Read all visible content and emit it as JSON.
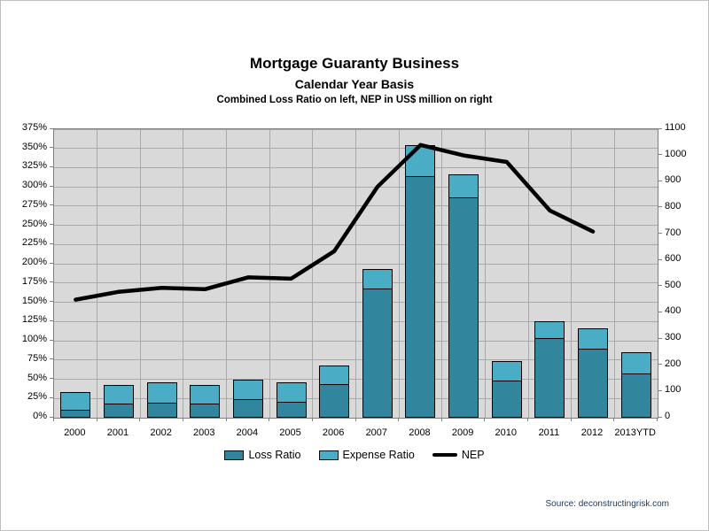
{
  "header": {
    "title": "Mortgage Guaranty Business",
    "subtitle": "Calendar Year Basis",
    "subtitle2": "Combined Loss Ratio on left, NEP in US$ million on right"
  },
  "source": {
    "text": "Source: deconstructingrisk.com"
  },
  "colors": {
    "loss_bar": "#31859C",
    "expense_bar": "#4BACC6",
    "nep_line": "#000000",
    "plot_bg": "#D9D9D9",
    "gridline": "#A9A9A9",
    "axis": "#7F7F7F",
    "source_text": "#17375E"
  },
  "chart_data": {
    "type": "bar",
    "subtype": "stacked-bars-with-line-overlay",
    "title": "Mortgage Guaranty Business",
    "subtitle": "Calendar Year Basis",
    "note": "Combined Loss Ratio on left, NEP in US$ million on right",
    "grid": true,
    "legend_position": "bottom",
    "categories": [
      "2000",
      "2001",
      "2002",
      "2003",
      "2004",
      "2005",
      "2006",
      "2007",
      "2008",
      "2009",
      "2010",
      "2011",
      "2012",
      "2013YTD"
    ],
    "series": [
      {
        "name": "Loss Ratio",
        "type": "bar",
        "stack": "combined",
        "axis": "left",
        "unit": "%",
        "values": [
          10,
          18,
          20,
          18,
          24,
          21,
          44,
          168,
          314,
          287,
          48,
          103,
          90,
          58
        ]
      },
      {
        "name": "Expense Ratio",
        "type": "bar",
        "stack": "combined",
        "axis": "left",
        "unit": "%",
        "values": [
          25,
          26,
          27,
          26,
          27,
          26,
          25,
          26,
          41,
          30,
          27,
          24,
          27,
          28
        ]
      },
      {
        "name": "NEP",
        "type": "line",
        "axis": "right",
        "unit": "US$ million",
        "values": [
          450,
          480,
          495,
          490,
          535,
          530,
          635,
          880,
          1040,
          1000,
          975,
          790,
          710,
          null
        ]
      }
    ],
    "combined_ratio_totals": [
      35,
      44,
      47,
      44,
      51,
      47,
      69,
      194,
      355,
      317,
      75,
      127,
      117,
      86
    ],
    "left_axis": {
      "min": 0,
      "max": 375,
      "step": 25,
      "format": "percent",
      "tick_labels": [
        "0%",
        "25%",
        "50%",
        "75%",
        "100%",
        "125%",
        "150%",
        "175%",
        "200%",
        "225%",
        "250%",
        "275%",
        "300%",
        "325%",
        "350%",
        "375%"
      ]
    },
    "right_axis": {
      "min": 0,
      "max": 1100,
      "step": 100,
      "tick_labels": [
        "0",
        "100",
        "200",
        "300",
        "400",
        "500",
        "600",
        "700",
        "800",
        "900",
        "1000",
        "1100"
      ]
    }
  }
}
